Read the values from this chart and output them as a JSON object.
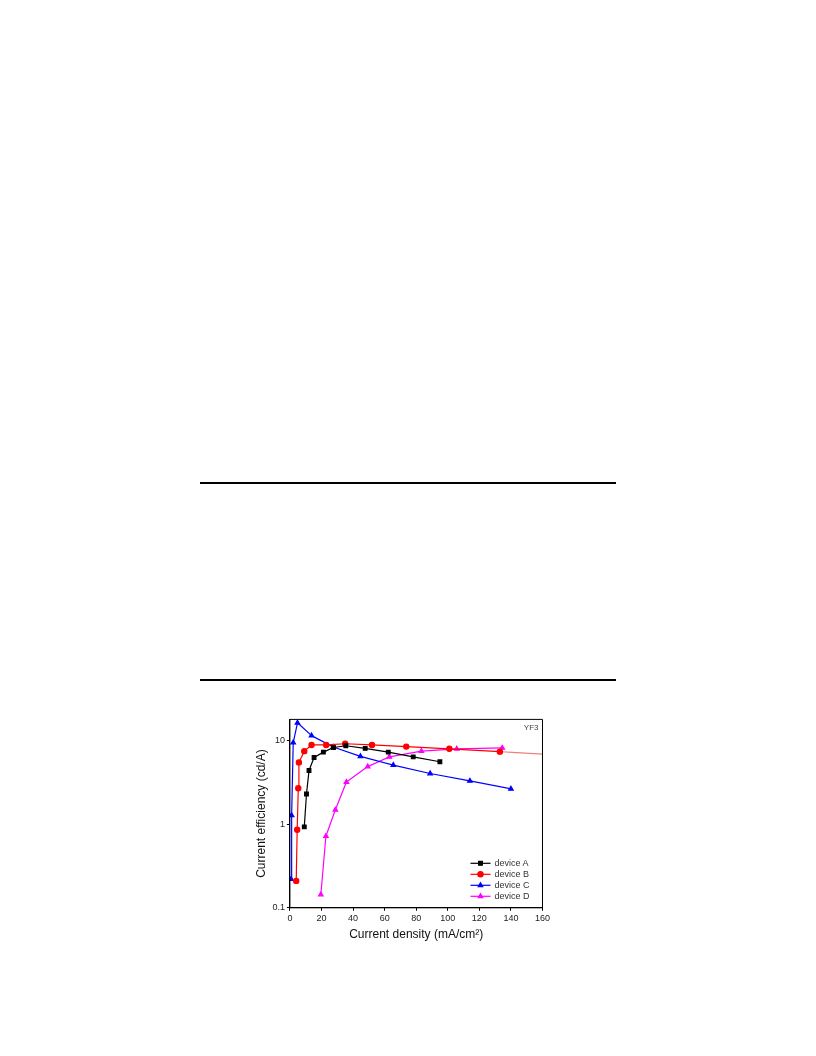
{
  "chart_data": {
    "type": "line",
    "xlabel": "Current density (mA/cm²)",
    "ylabel": "Current efficiency (cd/A)",
    "annotations": [
      "YF3"
    ],
    "log": "y",
    "xlim": [
      0,
      160
    ],
    "xticks": [
      0,
      20,
      40,
      60,
      80,
      100,
      120,
      140,
      160
    ],
    "ylim": [
      0.1,
      18
    ],
    "yticks": [
      0.1,
      1,
      10
    ],
    "grid": false,
    "legend": "bottom right",
    "line_style": "solid",
    "series": [
      {
        "name": "device A",
        "color": "#000000",
        "marker": "square",
        "x": [
          9.1,
          10.5,
          12.1,
          15.3,
          21.2,
          27.6,
          35.4,
          47.7,
          62.3,
          78.1,
          95
        ],
        "values": [
          0.93,
          2.3,
          4.4,
          6.3,
          7.3,
          8.3,
          8.7,
          8.1,
          7.3,
          6.4,
          5.6
        ]
      },
      {
        "name": "device B",
        "color": "#ff0000",
        "marker": "circle",
        "x": [
          4.0,
          4.6,
          5.3,
          5.7,
          9.1,
          13.7,
          23,
          35,
          52,
          73.7,
          101,
          133
        ],
        "values": [
          0.21,
          0.86,
          2.7,
          5.5,
          7.5,
          8.9,
          8.9,
          9.2,
          8.9,
          8.5,
          8.0,
          7.4
        ]
      },
      {
        "name": "device C",
        "color": "#0000ff",
        "marker": "triangle",
        "x": [
          0.7,
          1.1,
          2.1,
          4.8,
          13.7,
          27.4,
          44.7,
          65.5,
          88.8,
          114,
          140
        ],
        "values": [
          0.22,
          1.28,
          9.5,
          16.4,
          11.5,
          8.4,
          6.5,
          5.1,
          4.05,
          3.3,
          2.65
        ]
      },
      {
        "name": "device D",
        "color": "#ff00ff",
        "marker": "triangle",
        "x": [
          19.6,
          22.8,
          28.8,
          35.8,
          49.3,
          63,
          83.3,
          105.7,
          134.5
        ],
        "values": [
          0.144,
          0.72,
          1.49,
          3.2,
          4.9,
          6.4,
          7.5,
          8.0,
          8.2
        ]
      },
      {
        "type": "line",
        "color": "#f08080",
        "marker": "none",
        "x": [
          133,
          160
        ],
        "values": [
          7.4,
          6.9
        ]
      }
    ]
  }
}
